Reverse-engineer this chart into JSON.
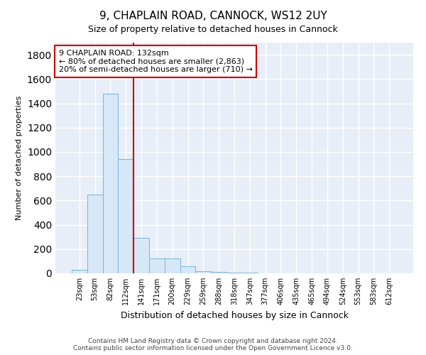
{
  "title1": "9, CHAPLAIN ROAD, CANNOCK, WS12 2UY",
  "title2": "Size of property relative to detached houses in Cannock",
  "xlabel": "Distribution of detached houses by size in Cannock",
  "ylabel": "Number of detached properties",
  "categories": [
    "23sqm",
    "53sqm",
    "82sqm",
    "112sqm",
    "141sqm",
    "171sqm",
    "200sqm",
    "229sqm",
    "259sqm",
    "288sqm",
    "318sqm",
    "347sqm",
    "377sqm",
    "406sqm",
    "435sqm",
    "465sqm",
    "494sqm",
    "524sqm",
    "553sqm",
    "583sqm",
    "612sqm"
  ],
  "values": [
    30,
    650,
    1480,
    940,
    290,
    120,
    120,
    60,
    20,
    10,
    5,
    3,
    2,
    1,
    1,
    1,
    1,
    1,
    1,
    1,
    1
  ],
  "bar_color": "#d6e8f7",
  "bar_edge_color": "#7ab3d9",
  "vline_color": "#cc0000",
  "annotation_line1": "9 CHAPLAIN ROAD: 132sqm",
  "annotation_line2": "← 80% of detached houses are smaller (2,863)",
  "annotation_line3": "20% of semi-detached houses are larger (710) →",
  "annotation_box_color": "#ffffff",
  "annotation_box_edge": "#cc0000",
  "footnote1": "Contains HM Land Registry data © Crown copyright and database right 2024.",
  "footnote2": "Contains public sector information licensed under the Open Government Licence v3.0.",
  "ylim": [
    0,
    1900
  ],
  "yticks": [
    0,
    200,
    400,
    600,
    800,
    1000,
    1200,
    1400,
    1600,
    1800
  ],
  "background_color": "#ffffff",
  "plot_bg_color": "#e8eef8",
  "grid_color": "#ffffff",
  "title1_fontsize": 11,
  "title2_fontsize": 9,
  "xlabel_fontsize": 9,
  "ylabel_fontsize": 8,
  "tick_fontsize": 7,
  "footnote_fontsize": 6.5,
  "annotation_fontsize": 8
}
